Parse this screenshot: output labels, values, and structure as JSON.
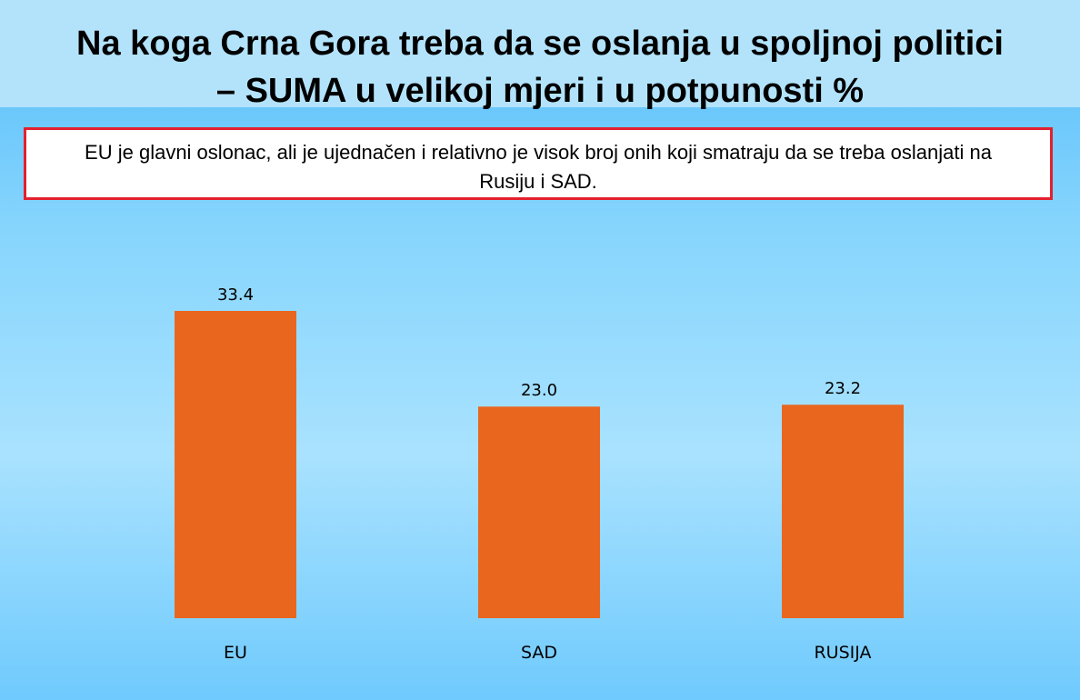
{
  "header": {
    "title_line1": "Na koga Crna Gora treba da se oslanja u spoljnoj politici",
    "title_line2": "– SUMA u velikoj mjeri i u potpunosti %"
  },
  "note": {
    "text": "EU je glavni oslonac, ali je ujednačen i relativno je visok broj onih koji smatraju da se treba oslanjati na Rusiju i SAD."
  },
  "colors": {
    "bar": "#e9661f",
    "note_border": "#e3202f"
  },
  "chart_data": {
    "type": "bar",
    "categories": [
      "EU",
      "SAD",
      "RUSIJA"
    ],
    "values": [
      33.4,
      23.0,
      23.2
    ],
    "value_labels": [
      "33.4",
      "23.0",
      "23.2"
    ],
    "title": "Na koga Crna Gora treba da se oslanja u spoljnoj politici – SUMA u velikoj mjeri i u potpunosti %",
    "xlabel": "",
    "ylabel": "",
    "grid": false,
    "legend": "none"
  }
}
